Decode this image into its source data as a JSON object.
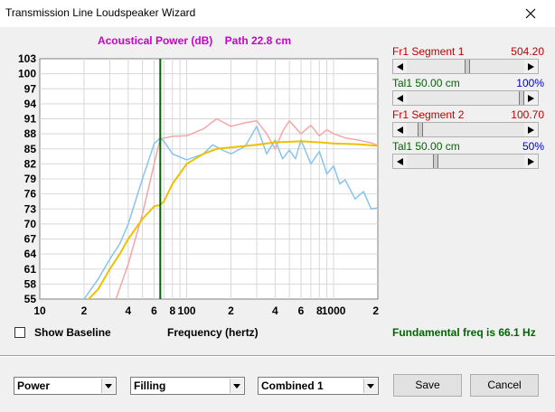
{
  "window": {
    "title": "Transmission Line Loudspeaker Wizard",
    "close_icon": "close-icon"
  },
  "chart_title": {
    "left": "Acoustical Power (dB)",
    "right": "Path 22.8 cm"
  },
  "colors": {
    "title": "#cc00cc",
    "red_label": "#c00000",
    "green_label": "#006600",
    "blue_value": "#0000cc",
    "curve_red": "#f4a6a6",
    "curve_blue": "#88c4ee",
    "curve_yellow": "#f0c000",
    "marker": "#006600"
  },
  "segments": [
    {
      "label": "Fr1  Segment 1",
      "value": "504.20",
      "level": 0.52
    },
    {
      "label": "Tal1  50.00 cm",
      "value": "100%",
      "level": 1.0
    },
    {
      "label": "Fr1  Segment 2",
      "value": "100.70",
      "level": 0.1
    },
    {
      "label": "Tal1  50.00 cm",
      "value": "50%",
      "level": 0.23
    }
  ],
  "controls": {
    "show_baseline": "Show Baseline",
    "frequency_label": "Frequency (hertz)",
    "fundamental": "Fundamental freq is 66.1 Hz",
    "combo1": "Power",
    "combo2": "Filling",
    "combo3": "Combined 1",
    "save": "Save",
    "cancel": "Cancel"
  },
  "chart_data": {
    "type": "line",
    "title": "Acoustical Power (dB)   Path 22.8 cm",
    "xlabel": "Frequency (hertz)",
    "ylabel": "",
    "x_scale": "log",
    "xlim": [
      10,
      2000
    ],
    "ylim": [
      55,
      103
    ],
    "y_ticks": [
      "103",
      "100",
      "97",
      "94",
      "91",
      "88",
      "85",
      "82",
      "79",
      "76",
      "73",
      "70",
      "67",
      "64",
      "61",
      "58",
      "55"
    ],
    "x_ticks": [
      {
        "label": "10",
        "value": 10
      },
      {
        "label": "2",
        "value": 20
      },
      {
        "label": "4",
        "value": 40
      },
      {
        "label": "6",
        "value": 60
      },
      {
        "label": "8",
        "value": 80
      },
      {
        "label": "100",
        "value": 100
      },
      {
        "label": "2",
        "value": 200
      },
      {
        "label": "4",
        "value": 400
      },
      {
        "label": "6",
        "value": 600
      },
      {
        "label": "8",
        "value": 800
      },
      {
        "label": "1000",
        "value": 1000
      },
      {
        "label": "2",
        "value": 2000
      }
    ],
    "marker_x": 66.1,
    "series": [
      {
        "color": "#f4a6a6",
        "points": [
          [
            33,
            55
          ],
          [
            40,
            62
          ],
          [
            50,
            72
          ],
          [
            60,
            82
          ],
          [
            66,
            87
          ],
          [
            80,
            87.5
          ],
          [
            100,
            87.6
          ],
          [
            130,
            89
          ],
          [
            160,
            91
          ],
          [
            200,
            89.5
          ],
          [
            250,
            90.2
          ],
          [
            300,
            90.6
          ],
          [
            350,
            88
          ],
          [
            400,
            85
          ],
          [
            450,
            88.5
          ],
          [
            500,
            90.6
          ],
          [
            600,
            88
          ],
          [
            700,
            89.7
          ],
          [
            800,
            87.6
          ],
          [
            900,
            88.8
          ],
          [
            1000,
            88
          ],
          [
            1200,
            87.2
          ],
          [
            1500,
            86.7
          ],
          [
            1800,
            86.2
          ],
          [
            2000,
            85.7
          ]
        ]
      },
      {
        "color": "#88c4ee",
        "points": [
          [
            20,
            55
          ],
          [
            25,
            59
          ],
          [
            30,
            63
          ],
          [
            35,
            66
          ],
          [
            40,
            70
          ],
          [
            50,
            79
          ],
          [
            60,
            86
          ],
          [
            66,
            87.2
          ],
          [
            70,
            86.5
          ],
          [
            80,
            84
          ],
          [
            100,
            82.8
          ],
          [
            130,
            84
          ],
          [
            150,
            85.8
          ],
          [
            180,
            84.6
          ],
          [
            200,
            84
          ],
          [
            250,
            85.5
          ],
          [
            300,
            89.5
          ],
          [
            350,
            84
          ],
          [
            400,
            86.8
          ],
          [
            450,
            83
          ],
          [
            500,
            84.8
          ],
          [
            550,
            83
          ],
          [
            600,
            86.8
          ],
          [
            700,
            82
          ],
          [
            800,
            84.5
          ],
          [
            900,
            80
          ],
          [
            1000,
            81.6
          ],
          [
            1100,
            78
          ],
          [
            1200,
            78.8
          ],
          [
            1400,
            75
          ],
          [
            1600,
            76.5
          ],
          [
            1800,
            73
          ],
          [
            2000,
            73.2
          ]
        ]
      },
      {
        "color": "#f0c000",
        "points": [
          [
            20,
            54
          ],
          [
            25,
            57
          ],
          [
            30,
            61
          ],
          [
            35,
            64
          ],
          [
            40,
            67
          ],
          [
            50,
            71
          ],
          [
            60,
            73.5
          ],
          [
            66,
            73.8
          ],
          [
            70,
            74.5
          ],
          [
            80,
            78
          ],
          [
            100,
            82
          ],
          [
            130,
            84
          ],
          [
            160,
            85
          ],
          [
            200,
            85.3
          ],
          [
            300,
            85.8
          ],
          [
            400,
            86.3
          ],
          [
            600,
            86.5
          ],
          [
            800,
            86.3
          ],
          [
            1000,
            86.1
          ],
          [
            1500,
            85.9
          ],
          [
            2000,
            85.6
          ]
        ]
      }
    ]
  }
}
